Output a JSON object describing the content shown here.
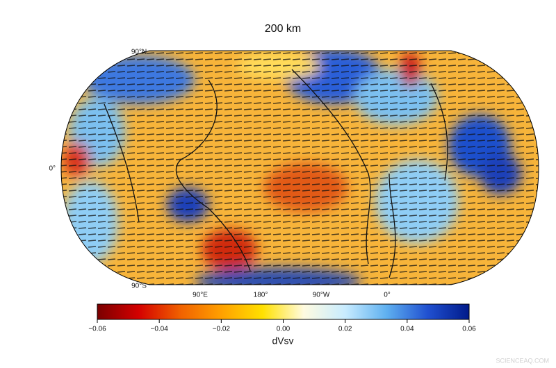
{
  "title": "200 km",
  "map": {
    "lat_labels": [
      "90°N",
      "0°",
      "90°S"
    ],
    "lon_labels": [
      "90°E",
      "180°",
      "90°W",
      "0°"
    ]
  },
  "colorbar": {
    "label": "dVsv",
    "lim": [
      -0.06,
      0.06
    ],
    "ticks": [
      {
        "value": -0.06,
        "label": "−0.06"
      },
      {
        "value": -0.04,
        "label": "−0.04"
      },
      {
        "value": -0.02,
        "label": "−0.02"
      },
      {
        "value": 0,
        "label": "0.00"
      },
      0.02,
      0.04,
      0.06
    ],
    "colors": [
      "#7a0000",
      "#d40000",
      "#f06000",
      "#ffa000",
      "#ffe000",
      "#fffbe0",
      "#c8ecff",
      "#5fb0f0",
      "#2050d0",
      "#001a8a"
    ]
  },
  "watermark": "SCIENCEAQ.COM"
}
